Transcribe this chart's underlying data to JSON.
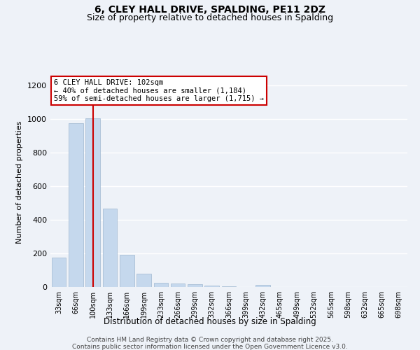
{
  "title": "6, CLEY HALL DRIVE, SPALDING, PE11 2DZ",
  "subtitle": "Size of property relative to detached houses in Spalding",
  "xlabel": "Distribution of detached houses by size in Spalding",
  "ylabel": "Number of detached properties",
  "categories": [
    "33sqm",
    "66sqm",
    "100sqm",
    "133sqm",
    "166sqm",
    "199sqm",
    "233sqm",
    "266sqm",
    "299sqm",
    "332sqm",
    "366sqm",
    "399sqm",
    "432sqm",
    "465sqm",
    "499sqm",
    "532sqm",
    "565sqm",
    "598sqm",
    "632sqm",
    "665sqm",
    "698sqm"
  ],
  "values": [
    175,
    975,
    1005,
    465,
    190,
    80,
    27,
    20,
    15,
    8,
    5,
    0,
    12,
    0,
    0,
    0,
    0,
    0,
    0,
    0,
    0
  ],
  "bar_color": "#c5d8ed",
  "bar_edge_color": "#a0b8d0",
  "vline_color": "#cc0000",
  "annotation_text": "6 CLEY HALL DRIVE: 102sqm\n← 40% of detached houses are smaller (1,184)\n59% of semi-detached houses are larger (1,715) →",
  "annotation_box_color": "#ffffff",
  "annotation_box_edge": "#cc0000",
  "ylim": [
    0,
    1250
  ],
  "yticks": [
    0,
    200,
    400,
    600,
    800,
    1000,
    1200
  ],
  "background_color": "#eef2f8",
  "grid_color": "#ffffff",
  "footer_line1": "Contains HM Land Registry data © Crown copyright and database right 2025.",
  "footer_line2": "Contains public sector information licensed under the Open Government Licence v3.0."
}
